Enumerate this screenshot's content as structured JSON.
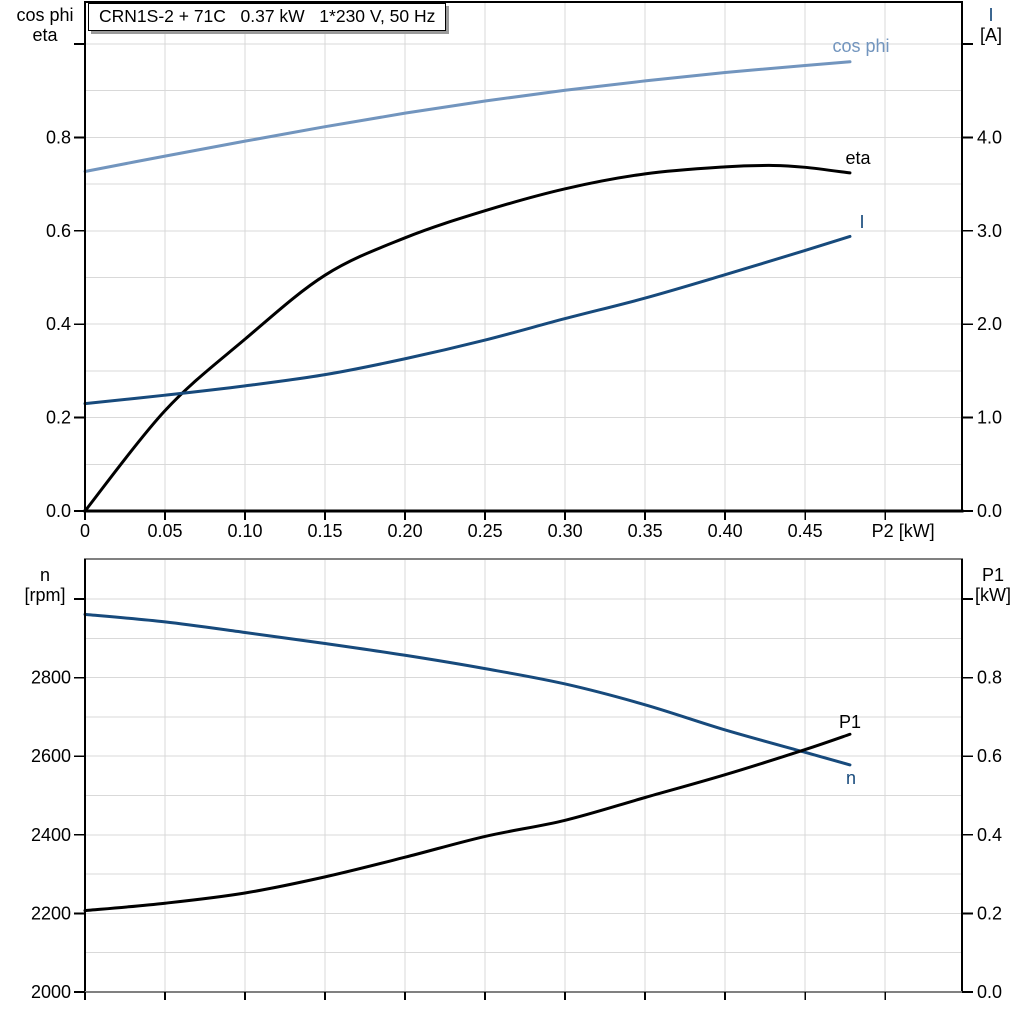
{
  "header": {
    "title": "CRN1S-2 + 71C   0.37 kW   1*230 V, 50 Hz"
  },
  "colors": {
    "black": "#000000",
    "dark_blue": "#174a7c",
    "light_blue": "#7295be",
    "grid": "#d9d9d9",
    "border_gray": "#808080",
    "background": "#ffffff"
  },
  "chart_data": [
    {
      "id": "top-electrical-chart",
      "type": "line",
      "title": "CRN1S-2 + 71C   0.37 kW   1*230 V, 50 Hz",
      "xlabel": "P2 [kW]",
      "x_axis": {
        "range": [
          0,
          0.548
        ],
        "grid_step": 0.05,
        "ticks": [
          {
            "v": 0,
            "label": "0"
          },
          {
            "v": 0.05,
            "label": "0.05"
          },
          {
            "v": 0.1,
            "label": "0.10"
          },
          {
            "v": 0.15,
            "label": "0.15"
          },
          {
            "v": 0.2,
            "label": "0.20"
          },
          {
            "v": 0.25,
            "label": "0.25"
          },
          {
            "v": 0.3,
            "label": "0.30"
          },
          {
            "v": 0.35,
            "label": "0.35"
          },
          {
            "v": 0.4,
            "label": "0.40"
          },
          {
            "v": 0.45,
            "label": "0.45"
          },
          {
            "v": 0.5,
            "label": "P2 [kW]",
            "is_axis_title": true
          }
        ]
      },
      "left_axis": {
        "title_lines": [
          "cos phi",
          "eta"
        ],
        "range": [
          0,
          1.09
        ],
        "grid_step": 0.1,
        "ticks": [
          {
            "v": 0.0,
            "label": "0.0"
          },
          {
            "v": 0.2,
            "label": "0.2"
          },
          {
            "v": 0.4,
            "label": "0.4"
          },
          {
            "v": 0.6,
            "label": "0.6"
          },
          {
            "v": 0.8,
            "label": "0.8"
          },
          {
            "v": 1.0,
            "label": ""
          }
        ]
      },
      "right_axis": {
        "title_lines": [
          "I",
          "[A]"
        ],
        "range": [
          0,
          5.45
        ],
        "ticks": [
          {
            "v": 0,
            "label": "0.0"
          },
          {
            "v": 1,
            "label": "1.0"
          },
          {
            "v": 2,
            "label": "2.0"
          },
          {
            "v": 3,
            "label": "3.0"
          },
          {
            "v": 4,
            "label": "4.0"
          },
          {
            "v": 5,
            "label": ""
          }
        ]
      },
      "series": [
        {
          "name": "cos phi",
          "label": "cos phi",
          "axis": "left",
          "color_key": "light_blue",
          "points": [
            [
              0,
              0.727
            ],
            [
              0.05,
              0.76
            ],
            [
              0.1,
              0.792
            ],
            [
              0.15,
              0.823
            ],
            [
              0.2,
              0.852
            ],
            [
              0.25,
              0.878
            ],
            [
              0.3,
              0.901
            ],
            [
              0.35,
              0.921
            ],
            [
              0.4,
              0.939
            ],
            [
              0.45,
              0.954
            ],
            [
              0.478,
              0.962
            ]
          ]
        },
        {
          "name": "eta",
          "label": "eta",
          "axis": "left",
          "color_key": "black",
          "points": [
            [
              0,
              0.0
            ],
            [
              0.05,
              0.215
            ],
            [
              0.1,
              0.368
            ],
            [
              0.15,
              0.505
            ],
            [
              0.2,
              0.585
            ],
            [
              0.25,
              0.643
            ],
            [
              0.3,
              0.69
            ],
            [
              0.35,
              0.722
            ],
            [
              0.4,
              0.737
            ],
            [
              0.43,
              0.74
            ],
            [
              0.45,
              0.736
            ],
            [
              0.478,
              0.724
            ]
          ]
        },
        {
          "name": "I",
          "label": "I",
          "axis": "right",
          "color_key": "dark_blue",
          "points": [
            [
              0,
              1.15
            ],
            [
              0.05,
              1.24
            ],
            [
              0.1,
              1.34
            ],
            [
              0.15,
              1.46
            ],
            [
              0.2,
              1.63
            ],
            [
              0.25,
              1.83
            ],
            [
              0.3,
              2.06
            ],
            [
              0.35,
              2.28
            ],
            [
              0.4,
              2.53
            ],
            [
              0.45,
              2.79
            ],
            [
              0.478,
              2.94
            ]
          ]
        }
      ]
    },
    {
      "id": "bottom-speed-power-chart",
      "type": "line",
      "xlabel": "",
      "x_axis": {
        "range": [
          0,
          0.548
        ],
        "grid_step": 0.05,
        "ticks": [
          {
            "v": 0
          },
          {
            "v": 0.05
          },
          {
            "v": 0.1
          },
          {
            "v": 0.15
          },
          {
            "v": 0.2
          },
          {
            "v": 0.25
          },
          {
            "v": 0.3
          },
          {
            "v": 0.35
          },
          {
            "v": 0.4
          },
          {
            "v": 0.45
          },
          {
            "v": 0.5
          }
        ]
      },
      "left_axis": {
        "title_lines": [
          "n",
          "[rpm]"
        ],
        "range": [
          2000,
          3102
        ],
        "grid_step": 100,
        "ticks": [
          {
            "v": 2000,
            "label": "2000"
          },
          {
            "v": 2200,
            "label": "2200"
          },
          {
            "v": 2400,
            "label": "2400"
          },
          {
            "v": 2600,
            "label": "2600"
          },
          {
            "v": 2800,
            "label": "2800"
          },
          {
            "v": 3000,
            "label": ""
          }
        ]
      },
      "right_axis": {
        "title_lines": [
          "P1",
          "[kW]"
        ],
        "range": [
          0,
          1.102
        ],
        "ticks": [
          {
            "v": 0.0,
            "label": "0.0"
          },
          {
            "v": 0.2,
            "label": "0.2"
          },
          {
            "v": 0.4,
            "label": "0.4"
          },
          {
            "v": 0.6,
            "label": "0.6"
          },
          {
            "v": 0.8,
            "label": "0.8"
          },
          {
            "v": 1.0,
            "label": ""
          }
        ]
      },
      "series": [
        {
          "name": "n",
          "label": "n",
          "axis": "left",
          "color_key": "dark_blue",
          "points": [
            [
              0,
              2961
            ],
            [
              0.05,
              2942
            ],
            [
              0.1,
              2915
            ],
            [
              0.15,
              2887
            ],
            [
              0.2,
              2857
            ],
            [
              0.25,
              2823
            ],
            [
              0.3,
              2784
            ],
            [
              0.35,
              2731
            ],
            [
              0.4,
              2667
            ],
            [
              0.45,
              2610
            ],
            [
              0.478,
              2578
            ]
          ]
        },
        {
          "name": "P1",
          "label": "P1",
          "axis": "right",
          "color_key": "black",
          "points": [
            [
              0,
              0.207
            ],
            [
              0.05,
              0.226
            ],
            [
              0.1,
              0.252
            ],
            [
              0.15,
              0.293
            ],
            [
              0.2,
              0.343
            ],
            [
              0.25,
              0.396
            ],
            [
              0.3,
              0.437
            ],
            [
              0.35,
              0.495
            ],
            [
              0.4,
              0.553
            ],
            [
              0.45,
              0.617
            ],
            [
              0.478,
              0.656
            ]
          ]
        }
      ]
    }
  ]
}
